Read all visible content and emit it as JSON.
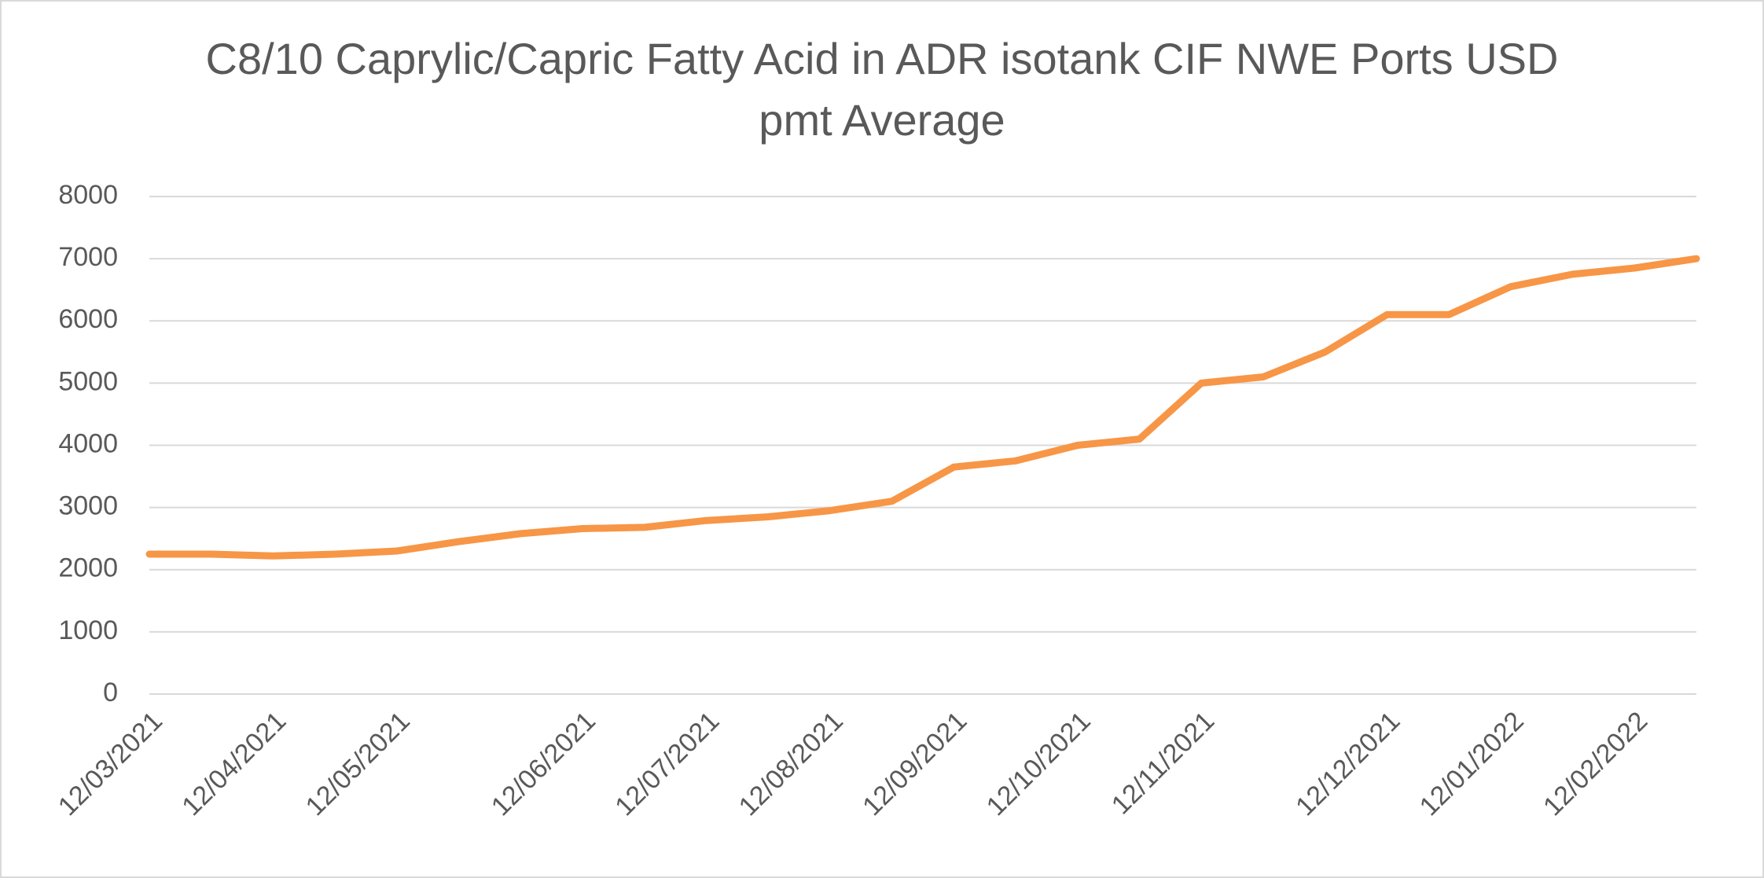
{
  "chart_data": {
    "type": "line",
    "title": "C8/10 Caprylic/Capric Fatty Acid in ADR isotank CIF NWE Ports USD pmt Average",
    "categories": [
      "12/03/2021",
      null,
      "12/04/2021",
      null,
      "12/05/2021",
      null,
      null,
      "12/06/2021",
      null,
      "12/07/2021",
      null,
      "12/08/2021",
      null,
      "12/09/2021",
      null,
      "12/10/2021",
      null,
      "12/11/2021",
      null,
      null,
      "12/12/2021",
      null,
      "12/01/2022",
      null,
      "12/02/2022",
      null
    ],
    "series": [
      {
        "name": "Average",
        "color": "#f79646",
        "values": [
          2250,
          2250,
          2220,
          2250,
          2300,
          2450,
          2580,
          2660,
          2680,
          2790,
          2850,
          2950,
          3100,
          3650,
          3750,
          4000,
          4100,
          5000,
          5100,
          5500,
          6100,
          6100,
          6550,
          6750,
          6850,
          7000
        ]
      }
    ],
    "ylim": [
      0,
      8000
    ],
    "yticks": [
      0,
      1000,
      2000,
      3000,
      4000,
      5000,
      6000,
      7000,
      8000
    ],
    "grid": true
  }
}
